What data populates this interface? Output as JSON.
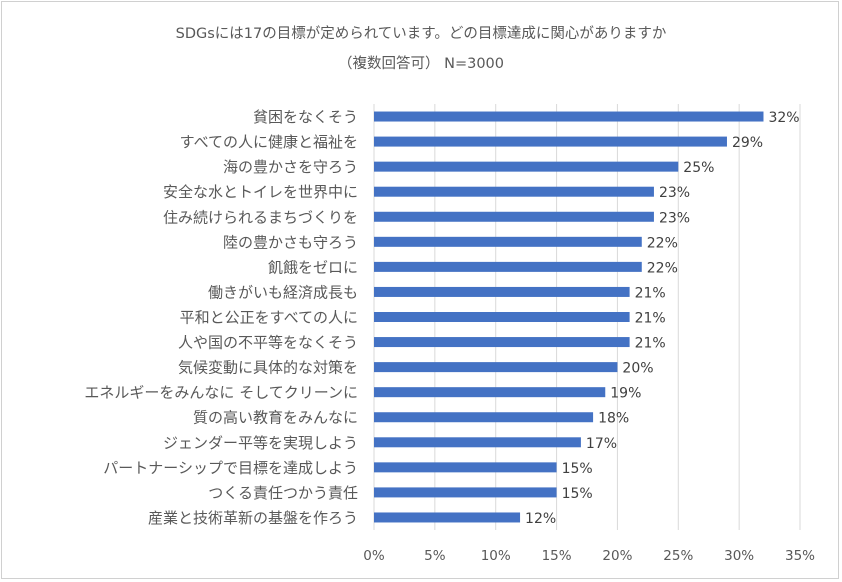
{
  "chart_data": {
    "type": "bar",
    "orientation": "horizontal",
    "title": "SDGsには17の目標が定められています。どの目標達成に関心がありますか",
    "subtitle": "（複数回答可） N=3000",
    "categories": [
      "貧困をなくそう",
      "すべての人に健康と福祉を",
      "海の豊かさを守ろう",
      "安全な水とトイレを世界中に",
      "住み続けられるまちづくりを",
      "陸の豊かさも守ろう",
      "飢餓をゼロに",
      "働きがいも経済成長も",
      "平和と公正をすべての人に",
      "人や国の不平等をなくそう",
      "気候変動に具体的な対策を",
      "エネルギーをみんなに そしてクリーンに",
      "質の高い教育をみんなに",
      "ジェンダー平等を実現しよう",
      "パートナーシップで目標を達成しよう",
      "つくる責任つかう責任",
      "産業と技術革新の基盤を作ろう"
    ],
    "values": [
      32,
      29,
      25,
      23,
      23,
      22,
      22,
      21,
      21,
      21,
      20,
      19,
      18,
      17,
      15,
      15,
      12
    ],
    "data_labels": [
      "32%",
      "29%",
      "25%",
      "23%",
      "23%",
      "22%",
      "22%",
      "21%",
      "21%",
      "21%",
      "20%",
      "19%",
      "18%",
      "17%",
      "15%",
      "15%",
      "12%"
    ],
    "x_ticks": [
      "0%",
      "5%",
      "10%",
      "15%",
      "20%",
      "25%",
      "30%",
      "35%"
    ],
    "xlim": [
      0,
      35
    ],
    "grid": true,
    "bar_color": "#4472c4",
    "grid_color": "#d9d9d9"
  }
}
